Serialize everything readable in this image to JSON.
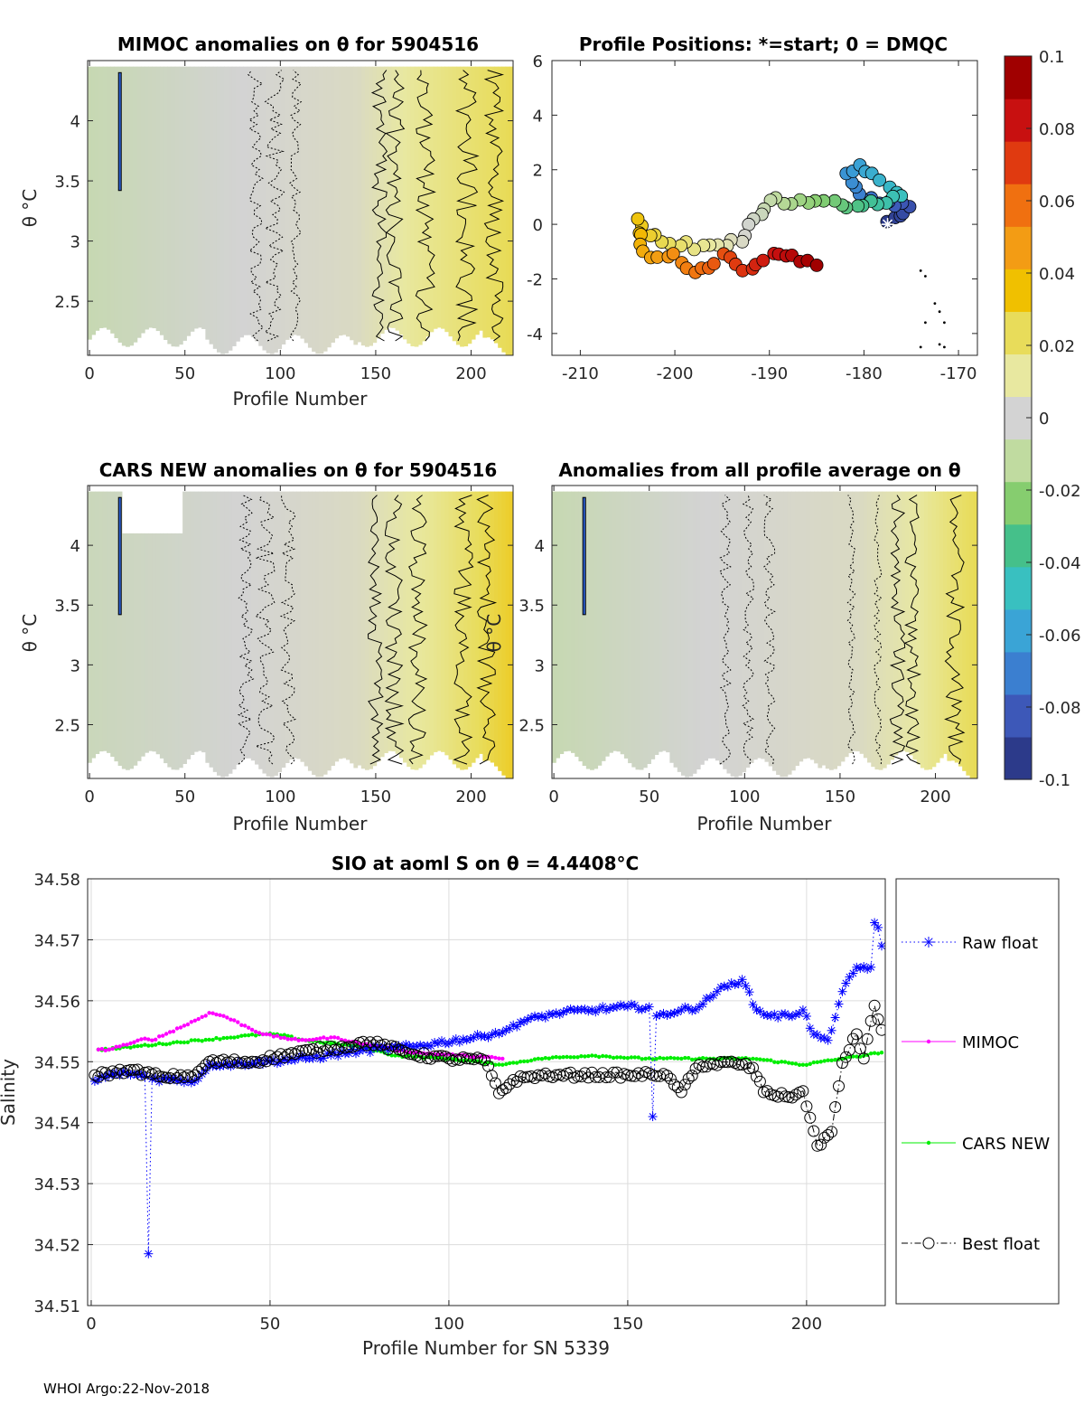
{
  "footer": "WHOI Argo:22-Nov-2018",
  "colorbar": {
    "range": [
      -0.1,
      0.1
    ],
    "tick_labels": [
      "0.1",
      "0.08",
      "0.06",
      "0.04",
      "0.02",
      "0",
      "-0.02",
      "-0.04",
      "-0.06",
      "-0.08",
      "-0.1"
    ],
    "colors": [
      "#2c3a8a",
      "#3d58b8",
      "#3b7fd0",
      "#3aa4d6",
      "#39c0c0",
      "#45c08a",
      "#86cd6f",
      "#c0dba0",
      "#d3d3d3",
      "#e8e8a0",
      "#e8dc5a",
      "#f0c000",
      "#f39c14",
      "#f07010",
      "#e03a10",
      "#c81010",
      "#a00000"
    ]
  },
  "chart_data": [
    {
      "id": "mimoc",
      "type": "heatmap",
      "title": "MIMOC anomalies on θ  for 5904516",
      "xlabel": "Profile Number",
      "ylabel": "θ °C",
      "xlim": [
        -1,
        222
      ],
      "ylim": [
        2.05,
        4.5
      ],
      "xticks": [
        0,
        50,
        100,
        150,
        200
      ],
      "yticks": [
        2.5,
        3,
        3.5,
        4
      ],
      "tick_labels_x": [
        "0",
        "50",
        "100",
        "150",
        "200"
      ],
      "tick_labels_y": [
        "2.5",
        "3",
        "3.5",
        "4"
      ],
      "anomaly_by_profile": [
        [
          0,
          -0.008
        ],
        [
          80,
          0.0
        ],
        [
          140,
          0.004
        ],
        [
          170,
          0.014
        ],
        [
          222,
          0.026
        ]
      ]
    },
    {
      "id": "positions",
      "type": "scatter",
      "title": "Profile Positions: *=start; 0 = DMQC",
      "xlim": [
        -213,
        -168
      ],
      "ylim": [
        -4.8,
        6
      ],
      "xticks": [
        -210,
        -200,
        -190,
        -180,
        -170
      ],
      "yticks": [
        -4,
        -2,
        0,
        2,
        4,
        6
      ],
      "tick_labels_x": [
        "-210",
        "-200",
        "-190",
        "-180",
        "-170"
      ],
      "tick_labels_y": [
        "-4",
        "-2",
        "0",
        "2",
        "4",
        "6"
      ],
      "start_marker": [
        -177.5,
        0.0
      ],
      "track_waypoints": [
        [
          -177.5,
          0.0
        ],
        [
          -175,
          0.7
        ],
        [
          -180,
          0.9
        ],
        [
          -182,
          1.9
        ],
        [
          -180.5,
          2.2
        ],
        [
          -176,
          1.0
        ],
        [
          -180,
          0.7
        ],
        [
          -190,
          0.9
        ],
        [
          -193,
          -0.6
        ],
        [
          -198,
          -0.8
        ],
        [
          -202,
          -0.5
        ],
        [
          -204,
          0.1
        ],
        [
          -203.5,
          -1.1
        ],
        [
          -200,
          -1.2
        ],
        [
          -198,
          -1.8
        ],
        [
          -195,
          -1.2
        ],
        [
          -192,
          -1.7
        ],
        [
          -189,
          -1.0
        ],
        [
          -185,
          -1.5
        ]
      ],
      "extra_points": [
        [
          -174,
          -1.7
        ],
        [
          -173.5,
          -1.9
        ],
        [
          -172.5,
          -2.9
        ],
        [
          -172,
          -3.2
        ],
        [
          -173.5,
          -3.6
        ],
        [
          -171.5,
          -3.6
        ],
        [
          -174,
          -4.5
        ],
        [
          -172,
          -4.4
        ],
        [
          -171.5,
          -4.5
        ]
      ]
    },
    {
      "id": "cars",
      "type": "heatmap",
      "title": "CARS NEW anomalies on θ for 5904516",
      "xlabel": "Profile Number",
      "ylabel": "θ °C",
      "xlim": [
        -1,
        222
      ],
      "ylim": [
        2.05,
        4.5
      ],
      "xticks": [
        0,
        50,
        100,
        150,
        200
      ],
      "yticks": [
        2.5,
        3,
        3.5,
        4
      ],
      "tick_labels_x": [
        "0",
        "50",
        "100",
        "150",
        "200"
      ],
      "tick_labels_y": [
        "2.5",
        "3",
        "3.5",
        "4"
      ],
      "anomaly_by_profile": [
        [
          0,
          -0.006
        ],
        [
          80,
          0.0
        ],
        [
          140,
          0.004
        ],
        [
          180,
          0.015
        ],
        [
          222,
          0.032
        ]
      ]
    },
    {
      "id": "allavg",
      "type": "heatmap",
      "title": "Anomalies from all profile average on θ",
      "xlabel": "Profile Number",
      "ylabel": "θ °C",
      "xlim": [
        -1,
        222
      ],
      "ylim": [
        2.05,
        4.5
      ],
      "xticks": [
        0,
        50,
        100,
        150,
        200
      ],
      "yticks": [
        2.5,
        3,
        3.5,
        4
      ],
      "tick_labels_x": [
        "0",
        "50",
        "100",
        "150",
        "200"
      ],
      "tick_labels_y": [
        "2.5",
        "3",
        "3.5",
        "4"
      ],
      "anomaly_by_profile": [
        [
          0,
          -0.008
        ],
        [
          80,
          0.0
        ],
        [
          160,
          0.004
        ],
        [
          190,
          0.012
        ],
        [
          222,
          0.026
        ]
      ]
    },
    {
      "id": "salinity",
      "type": "line",
      "title": "SIO at aoml S on θ = 4.4408°C",
      "xlabel": "Profile Number for SN 5339",
      "ylabel": "Salinity",
      "xlim": [
        -1,
        222
      ],
      "ylim": [
        34.51,
        34.58
      ],
      "xticks": [
        0,
        50,
        100,
        150,
        200
      ],
      "yticks": [
        34.51,
        34.52,
        34.53,
        34.54,
        34.55,
        34.56,
        34.57,
        34.58
      ],
      "tick_labels_x": [
        "0",
        "50",
        "100",
        "150",
        "200"
      ],
      "tick_labels_y": [
        "34.51",
        "34.52",
        "34.53",
        "34.54",
        "34.55",
        "34.56",
        "34.57",
        "34.58"
      ],
      "grid": true,
      "legend_position": "right",
      "series": [
        {
          "name": "Raw float",
          "color": "#0000ff",
          "marker": "asterisk",
          "style": "dotted",
          "keypoints": [
            [
              1,
              34.5468
            ],
            [
              5,
              34.5478
            ],
            [
              10,
              34.5482
            ],
            [
              15,
              34.5476
            ],
            [
              16,
              34.5185
            ],
            [
              17,
              34.5472
            ],
            [
              25,
              34.547
            ],
            [
              29,
              34.5468
            ],
            [
              33,
              34.5496
            ],
            [
              40,
              34.5496
            ],
            [
              60,
              34.5505
            ],
            [
              75,
              34.5518
            ],
            [
              90,
              34.5525
            ],
            [
              110,
              34.5542
            ],
            [
              116,
              34.5552
            ],
            [
              120,
              34.5565
            ],
            [
              130,
              34.558
            ],
            [
              140,
              34.5585
            ],
            [
              150,
              34.559
            ],
            [
              156,
              34.559
            ],
            [
              157,
              34.541
            ],
            [
              158,
              34.5575
            ],
            [
              165,
              34.5585
            ],
            [
              170,
              34.559
            ],
            [
              175,
              34.5615
            ],
            [
              182,
              34.5635
            ],
            [
              186,
              34.5585
            ],
            [
              190,
              34.5575
            ],
            [
              195,
              34.5575
            ],
            [
              199,
              34.5585
            ],
            [
              202,
              34.5545
            ],
            [
              206,
              34.5535
            ],
            [
              210,
              34.5615
            ],
            [
              214,
              34.5655
            ],
            [
              218,
              34.5655
            ],
            [
              219,
              34.5728
            ],
            [
              220,
              34.572
            ],
            [
              221,
              34.569
            ]
          ]
        },
        {
          "name": "MIMOC",
          "color": "#ff00ff",
          "marker": "dot",
          "style": "solid",
          "keypoints": [
            [
              2,
              34.552
            ],
            [
              5,
              34.552
            ],
            [
              8,
              34.5525
            ],
            [
              12,
              34.5532
            ],
            [
              15,
              34.5538
            ],
            [
              17,
              34.5535
            ],
            [
              30,
              34.557
            ],
            [
              33,
              34.558
            ],
            [
              37,
              34.5575
            ],
            [
              48,
              34.5545
            ],
            [
              58,
              34.5535
            ],
            [
              68,
              34.554
            ],
            [
              75,
              34.553
            ],
            [
              90,
              34.5515
            ],
            [
              105,
              34.551
            ],
            [
              115,
              34.5505
            ]
          ]
        },
        {
          "name": "CARS NEW",
          "color": "#00ee00",
          "marker": "dot",
          "style": "solid",
          "keypoints": [
            [
              2,
              34.552
            ],
            [
              8,
              34.5522
            ],
            [
              12,
              34.5525
            ],
            [
              48,
              34.5545
            ],
            [
              52,
              34.5545
            ],
            [
              60,
              34.5535
            ],
            [
              75,
              34.5525
            ],
            [
              85,
              34.551
            ],
            [
              100,
              34.5505
            ],
            [
              115,
              34.5495
            ],
            [
              125,
              34.5505
            ],
            [
              140,
              34.551
            ],
            [
              155,
              34.5505
            ],
            [
              165,
              34.5505
            ],
            [
              185,
              34.5505
            ],
            [
              199,
              34.5495
            ],
            [
              210,
              34.5505
            ],
            [
              221,
              34.5515
            ]
          ]
        },
        {
          "name": "Best float",
          "color": "#000000",
          "marker": "circle",
          "style": "dashdot",
          "keypoints": [
            [
              1,
              34.5478
            ],
            [
              10,
              34.5485
            ],
            [
              15,
              34.5482
            ],
            [
              20,
              34.5475
            ],
            [
              29,
              34.5478
            ],
            [
              33,
              34.55
            ],
            [
              45,
              34.55
            ],
            [
              55,
              34.5512
            ],
            [
              70,
              34.5525
            ],
            [
              78,
              34.5532
            ],
            [
              90,
              34.5512
            ],
            [
              100,
              34.5505
            ],
            [
              110,
              34.5502
            ],
            [
              114,
              34.5448
            ],
            [
              118,
              34.547
            ],
            [
              125,
              34.5478
            ],
            [
              130,
              34.5478
            ],
            [
              150,
              34.5478
            ],
            [
              160,
              34.548
            ],
            [
              165,
              34.545
            ],
            [
              170,
              34.5495
            ],
            [
              180,
              34.5498
            ],
            [
              185,
              34.549
            ],
            [
              188,
              34.545
            ],
            [
              195,
              34.5442
            ],
            [
              199,
              34.5452
            ],
            [
              201,
              34.5408
            ],
            [
              203,
              34.5362
            ],
            [
              207,
              34.5385
            ],
            [
              210,
              34.5498
            ],
            [
              214,
              34.5545
            ],
            [
              216,
              34.5505
            ],
            [
              219,
              34.5592
            ],
            [
              221,
              34.5552
            ]
          ]
        }
      ]
    }
  ]
}
